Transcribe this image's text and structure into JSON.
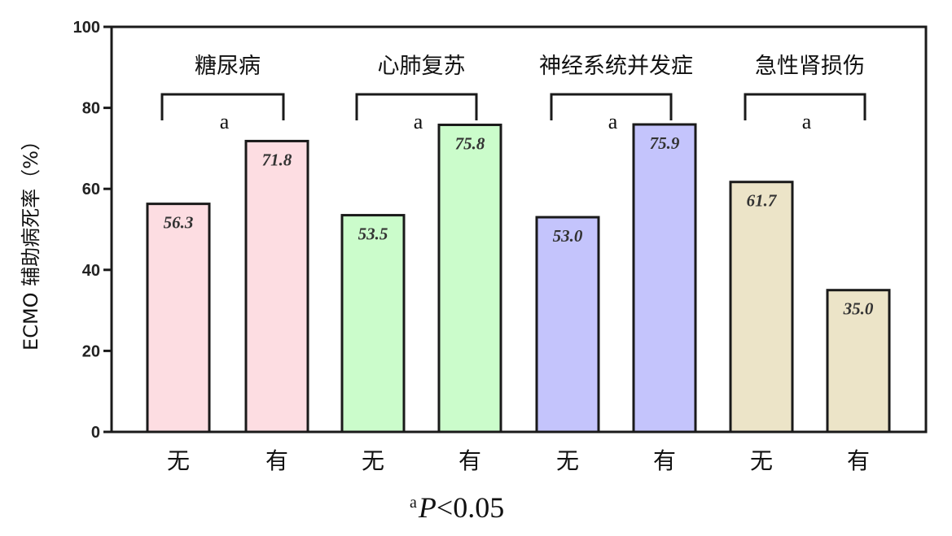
{
  "chart_data": {
    "type": "bar",
    "ylabel": "ECMO 辅助病死率（%）",
    "ylim": [
      0,
      100
    ],
    "yticks": [
      "0",
      "20",
      "40",
      "60",
      "80",
      "100"
    ],
    "groups": [
      {
        "name": "糖尿病",
        "significance": "a",
        "categories": [
          "无",
          "有"
        ],
        "values": [
          56.3,
          71.8
        ],
        "value_labels": [
          "56.3",
          "71.8"
        ],
        "color": "#fddde2"
      },
      {
        "name": "心肺复苏",
        "significance": "a",
        "categories": [
          "无",
          "有"
        ],
        "values": [
          53.5,
          75.8
        ],
        "value_labels": [
          "53.5",
          "75.8"
        ],
        "color": "#cbfccb"
      },
      {
        "name": "神经系统并发症",
        "significance": "a",
        "categories": [
          "无",
          "有"
        ],
        "values": [
          53.0,
          75.9
        ],
        "value_labels": [
          "53.0",
          "75.9"
        ],
        "color": "#c4c4fc"
      },
      {
        "name": "急性肾损伤",
        "significance": "a",
        "categories": [
          "无",
          "有"
        ],
        "values": [
          61.7,
          35.0
        ],
        "value_labels": [
          "61.7",
          "35.0"
        ],
        "color": "#ece4c8"
      }
    ],
    "legend": "none",
    "grid": false
  },
  "footnote": {
    "superscript": "a",
    "p_symbol": "P",
    "rest": "<0.05"
  }
}
